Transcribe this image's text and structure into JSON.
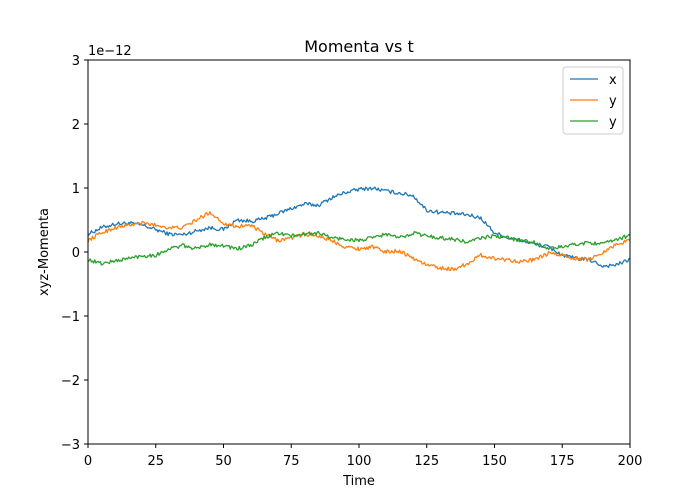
{
  "chart_data": {
    "type": "line",
    "title": "Momenta vs t",
    "xlabel": "Time",
    "ylabel": "xyz-Momenta",
    "offset_label": "1e−12",
    "xlim": [
      0,
      200
    ],
    "ylim": [
      -3,
      3
    ],
    "xticks": [
      0,
      25,
      50,
      75,
      100,
      125,
      150,
      175,
      200
    ],
    "yticks": [
      -3,
      -2,
      -1,
      0,
      1,
      2,
      3
    ],
    "xtick_labels": [
      "0",
      "25",
      "50",
      "75",
      "100",
      "125",
      "150",
      "175",
      "200"
    ],
    "ytick_labels": [
      "−3",
      "−2",
      "−1",
      "0",
      "1",
      "2",
      "3"
    ],
    "grid": false,
    "legend_position": "top-right",
    "x": [
      0,
      5,
      10,
      15,
      20,
      25,
      30,
      35,
      40,
      45,
      50,
      55,
      60,
      65,
      70,
      75,
      80,
      85,
      90,
      95,
      100,
      105,
      110,
      115,
      120,
      125,
      130,
      135,
      140,
      145,
      150,
      155,
      160,
      165,
      170,
      175,
      180,
      185,
      190,
      195,
      200
    ],
    "series": [
      {
        "name": "x",
        "color": "#1f77b4",
        "values": [
          0.28,
          0.38,
          0.44,
          0.45,
          0.42,
          0.35,
          0.28,
          0.27,
          0.33,
          0.38,
          0.35,
          0.5,
          0.48,
          0.52,
          0.6,
          0.68,
          0.75,
          0.73,
          0.85,
          0.93,
          0.98,
          1.0,
          0.95,
          0.92,
          0.88,
          0.65,
          0.62,
          0.6,
          0.58,
          0.53,
          0.3,
          0.22,
          0.18,
          0.12,
          0.08,
          -0.05,
          -0.1,
          -0.12,
          -0.22,
          -0.2,
          -0.12
        ]
      },
      {
        "name": "y",
        "color": "#ff7f0e",
        "values": [
          0.18,
          0.3,
          0.38,
          0.42,
          0.45,
          0.42,
          0.38,
          0.38,
          0.5,
          0.62,
          0.45,
          0.4,
          0.42,
          0.28,
          0.18,
          0.22,
          0.28,
          0.25,
          0.18,
          0.08,
          0.05,
          0.08,
          0.0,
          0.02,
          -0.1,
          -0.2,
          -0.25,
          -0.27,
          -0.18,
          -0.05,
          -0.1,
          -0.12,
          -0.15,
          -0.12,
          -0.02,
          -0.05,
          -0.1,
          -0.12,
          0.0,
          0.12,
          0.18
        ]
      },
      {
        "name": "y",
        "color": "#2ca02c",
        "values": [
          -0.12,
          -0.18,
          -0.14,
          -0.1,
          -0.06,
          -0.05,
          0.05,
          0.1,
          0.05,
          0.12,
          0.1,
          0.05,
          0.1,
          0.22,
          0.3,
          0.25,
          0.28,
          0.3,
          0.22,
          0.2,
          0.18,
          0.22,
          0.28,
          0.22,
          0.3,
          0.25,
          0.22,
          0.2,
          0.15,
          0.22,
          0.25,
          0.22,
          0.18,
          0.15,
          0.05,
          0.08,
          0.12,
          0.15,
          0.12,
          0.2,
          0.26
        ]
      }
    ]
  }
}
